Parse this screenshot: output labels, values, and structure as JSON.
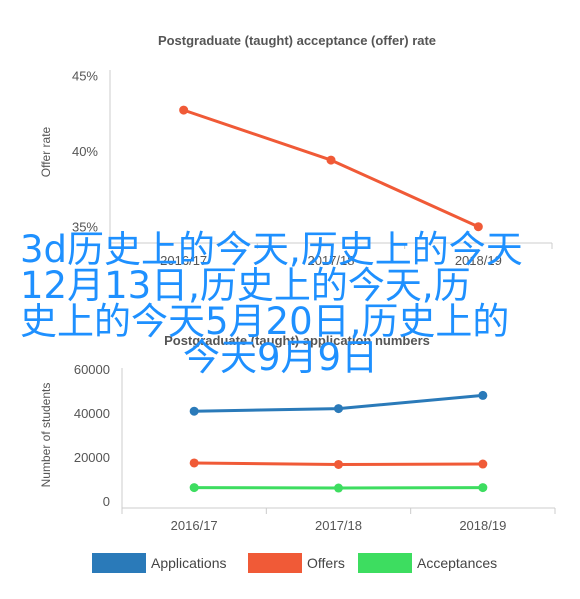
{
  "chart_data": [
    {
      "type": "line",
      "title": "Postgraduate (taught) acceptance (offer) rate",
      "xlabel": "",
      "ylabel": "Offer rate",
      "categories": [
        "2016/17",
        "2017/18",
        "2018/19"
      ],
      "yticks": [
        "35%",
        "40%",
        "45%"
      ],
      "ylim": [
        33,
        47
      ],
      "grid": false,
      "series": [
        {
          "values": [
            42.7,
            39.4,
            35.0
          ],
          "color": "#f05a37"
        }
      ]
    },
    {
      "type": "line",
      "title": "Postgraduate (taught) application numbers",
      "xlabel": "",
      "ylabel": "Number of students",
      "categories": [
        "2016/17",
        "2017/18",
        "2018/19"
      ],
      "yticks": [
        "0",
        "20000",
        "40000",
        "60000"
      ],
      "ylim": [
        -10000,
        70000
      ],
      "grid": false,
      "legend_position": "bottom",
      "series": [
        {
          "name": "Applications",
          "values": [
            40800,
            42000,
            48000
          ],
          "color": "#2a7ab9"
        },
        {
          "name": "Offers",
          "values": [
            17300,
            16600,
            16800
          ],
          "color": "#f05a37"
        },
        {
          "name": "Acceptances",
          "values": [
            6100,
            5900,
            6100
          ],
          "color": "#3ddd60"
        }
      ]
    }
  ],
  "overlay": {
    "lines": [
      "3d历史上的今天,历史上的今天",
      "12月13日,历史上的今天,历",
      "史上的今天5月20日,历史上的",
      "今天9月9日"
    ],
    "color": "#1e90ff"
  }
}
